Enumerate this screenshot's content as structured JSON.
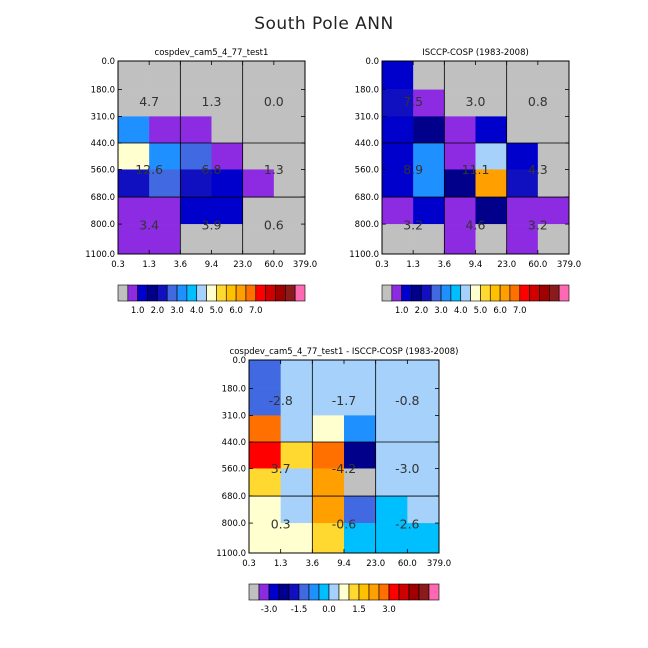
{
  "title": "South Pole ANN",
  "chart_data": [
    {
      "type": "heatmap",
      "title": "cospdev_cam5_4_77_test1",
      "x_tick_labels": [
        "0.3",
        "1.3",
        "3.6",
        "9.4",
        "23.0",
        "60.0",
        "379.0"
      ],
      "y_tick_labels": [
        "0.0",
        "180.0",
        "310.0",
        "440.0",
        "560.0",
        "680.0",
        "800.0",
        "1100.0"
      ],
      "ylim": [
        0,
        1100
      ],
      "cell_classes": [
        [
          0,
          0,
          0,
          0,
          0,
          0
        ],
        [
          0,
          0,
          0,
          0,
          0,
          0
        ],
        [
          6,
          1,
          1,
          0,
          0,
          0
        ],
        [
          9,
          6,
          5,
          1,
          0,
          0
        ],
        [
          4,
          5,
          4,
          2,
          1,
          0
        ],
        [
          1,
          1,
          2,
          2,
          0,
          0
        ],
        [
          1,
          1,
          0,
          0,
          0,
          0
        ]
      ],
      "summary_values": [
        [
          "4.7",
          "1.3",
          "0.0"
        ],
        [
          "12.6",
          "6.8",
          "1.3"
        ],
        [
          "3.4",
          "3.9",
          "0.6"
        ]
      ],
      "colorbar": {
        "colors": [
          "#c0c0c0",
          "#8c2be2",
          "#0000cd",
          "#00008b",
          "#1010c0",
          "#4169e1",
          "#1e90ff",
          "#00bfff",
          "#a5d1fa",
          "#ffffd0",
          "#ffd830",
          "#ffc000",
          "#ffa000",
          "#ff7000",
          "#ff0000",
          "#d00000",
          "#a00000",
          "#8b1a1a",
          "#ff69b4"
        ],
        "labels": [
          "1.0",
          "2.0",
          "3.0",
          "4.0",
          "5.0",
          "6.0",
          "7.0"
        ]
      }
    },
    {
      "type": "heatmap",
      "title": "ISCCP-COSP (1983-2008)",
      "x_tick_labels": [
        "0.3",
        "1.3",
        "3.6",
        "9.4",
        "23.0",
        "60.0",
        "379.0"
      ],
      "y_tick_labels": [
        "0.0",
        "180.0",
        "310.0",
        "440.0",
        "560.0",
        "680.0",
        "800.0",
        "1100.0"
      ],
      "ylim": [
        0,
        1100
      ],
      "cell_classes": [
        [
          2,
          0,
          0,
          0,
          0,
          0
        ],
        [
          4,
          1,
          0,
          0,
          0,
          0
        ],
        [
          2,
          3,
          1,
          2,
          0,
          0
        ],
        [
          2,
          6,
          1,
          8,
          2,
          0
        ],
        [
          2,
          6,
          3,
          12,
          4,
          0
        ],
        [
          1,
          2,
          1,
          3,
          1,
          1
        ],
        [
          0,
          0,
          1,
          0,
          1,
          0
        ]
      ],
      "summary_values": [
        [
          "7.5",
          "3.0",
          "0.8"
        ],
        [
          "8.9",
          "11.1",
          "4.3"
        ],
        [
          "3.2",
          "4.6",
          "3.2"
        ]
      ],
      "colorbar": {
        "colors": [
          "#c0c0c0",
          "#8c2be2",
          "#0000cd",
          "#00008b",
          "#1010c0",
          "#4169e1",
          "#1e90ff",
          "#00bfff",
          "#a5d1fa",
          "#ffffd0",
          "#ffd830",
          "#ffc000",
          "#ffa000",
          "#ff7000",
          "#ff0000",
          "#d00000",
          "#a00000",
          "#8b1a1a",
          "#ff69b4"
        ],
        "labels": [
          "1.0",
          "2.0",
          "3.0",
          "4.0",
          "5.0",
          "6.0",
          "7.0"
        ]
      }
    },
    {
      "type": "heatmap",
      "title": "cospdev_cam5_4_77_test1 - ISCCP-COSP (1983-2008)",
      "x_tick_labels": [
        "0.3",
        "1.3",
        "3.6",
        "9.4",
        "23.0",
        "60.0",
        "379.0"
      ],
      "y_tick_labels": [
        "0.0",
        "180.0",
        "310.0",
        "440.0",
        "560.0",
        "680.0",
        "800.0",
        "1100.0"
      ],
      "ylim": [
        0,
        1100
      ],
      "cell_classes": [
        [
          5,
          8,
          8,
          8,
          8,
          8
        ],
        [
          5,
          8,
          8,
          8,
          8,
          8
        ],
        [
          13,
          8,
          9,
          6,
          8,
          8
        ],
        [
          14,
          10,
          13,
          3,
          8,
          8
        ],
        [
          10,
          8,
          12,
          0,
          8,
          8
        ],
        [
          9,
          8,
          12,
          5,
          7,
          8
        ],
        [
          9,
          9,
          10,
          7,
          7,
          7
        ]
      ],
      "summary_values": [
        [
          "-2.8",
          "-1.7",
          "-0.8"
        ],
        [
          "3.7",
          "-4.2",
          "-3.0"
        ],
        [
          "0.3",
          "-0.6",
          "-2.6"
        ]
      ],
      "colorbar": {
        "colors": [
          "#c0c0c0",
          "#8c2be2",
          "#0000cd",
          "#00008b",
          "#1010c0",
          "#4169e1",
          "#1e90ff",
          "#00bfff",
          "#a5d1fa",
          "#ffffd0",
          "#ffd830",
          "#ffc000",
          "#ffa000",
          "#ff7000",
          "#ff0000",
          "#d00000",
          "#a00000",
          "#8b1a1a",
          "#ff69b4"
        ],
        "labels": [
          "-3.0",
          "-1.5",
          "0.0",
          "1.5",
          "3.0"
        ]
      }
    }
  ]
}
